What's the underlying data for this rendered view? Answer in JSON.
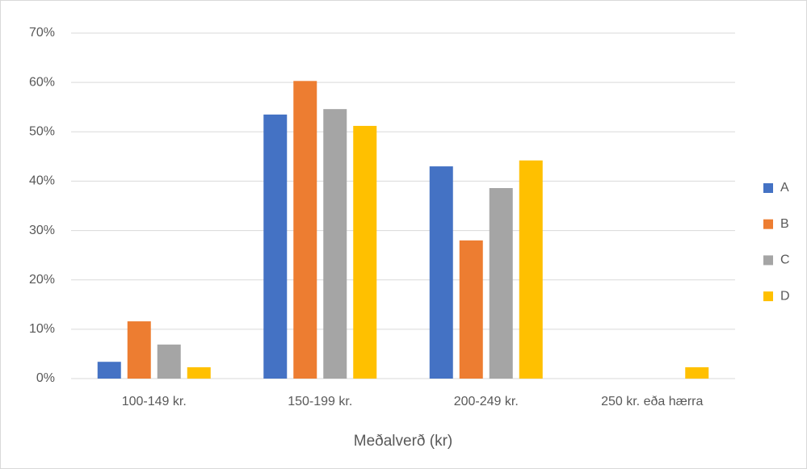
{
  "chart_data": {
    "type": "bar",
    "x_label": "Meðalverð (kr)",
    "categories": [
      "100-149 kr.",
      "150-199 kr.",
      "200-249 kr.",
      "250 kr. eða hærra"
    ],
    "series": [
      {
        "name": "A",
        "color": "#4472c4",
        "values": [
          3.4,
          53.5,
          43.0,
          0
        ]
      },
      {
        "name": "B",
        "color": "#ed7d31",
        "values": [
          11.6,
          60.3,
          28.0,
          0
        ]
      },
      {
        "name": "C",
        "color": "#a5a5a5",
        "values": [
          6.9,
          54.6,
          38.6,
          0
        ]
      },
      {
        "name": "D",
        "color": "#ffc000",
        "values": [
          2.3,
          51.2,
          44.2,
          2.3
        ]
      }
    ],
    "ylim": [
      0,
      70
    ],
    "yticks": [
      {
        "value": 0,
        "label": "0%"
      },
      {
        "value": 10,
        "label": "10%"
      },
      {
        "value": 20,
        "label": "20%"
      },
      {
        "value": 30,
        "label": "30%"
      },
      {
        "value": 40,
        "label": "40%"
      },
      {
        "value": 50,
        "label": "50%"
      },
      {
        "value": 60,
        "label": "60%"
      },
      {
        "value": 70,
        "label": "70%"
      }
    ],
    "grid": true,
    "legend": "right"
  }
}
